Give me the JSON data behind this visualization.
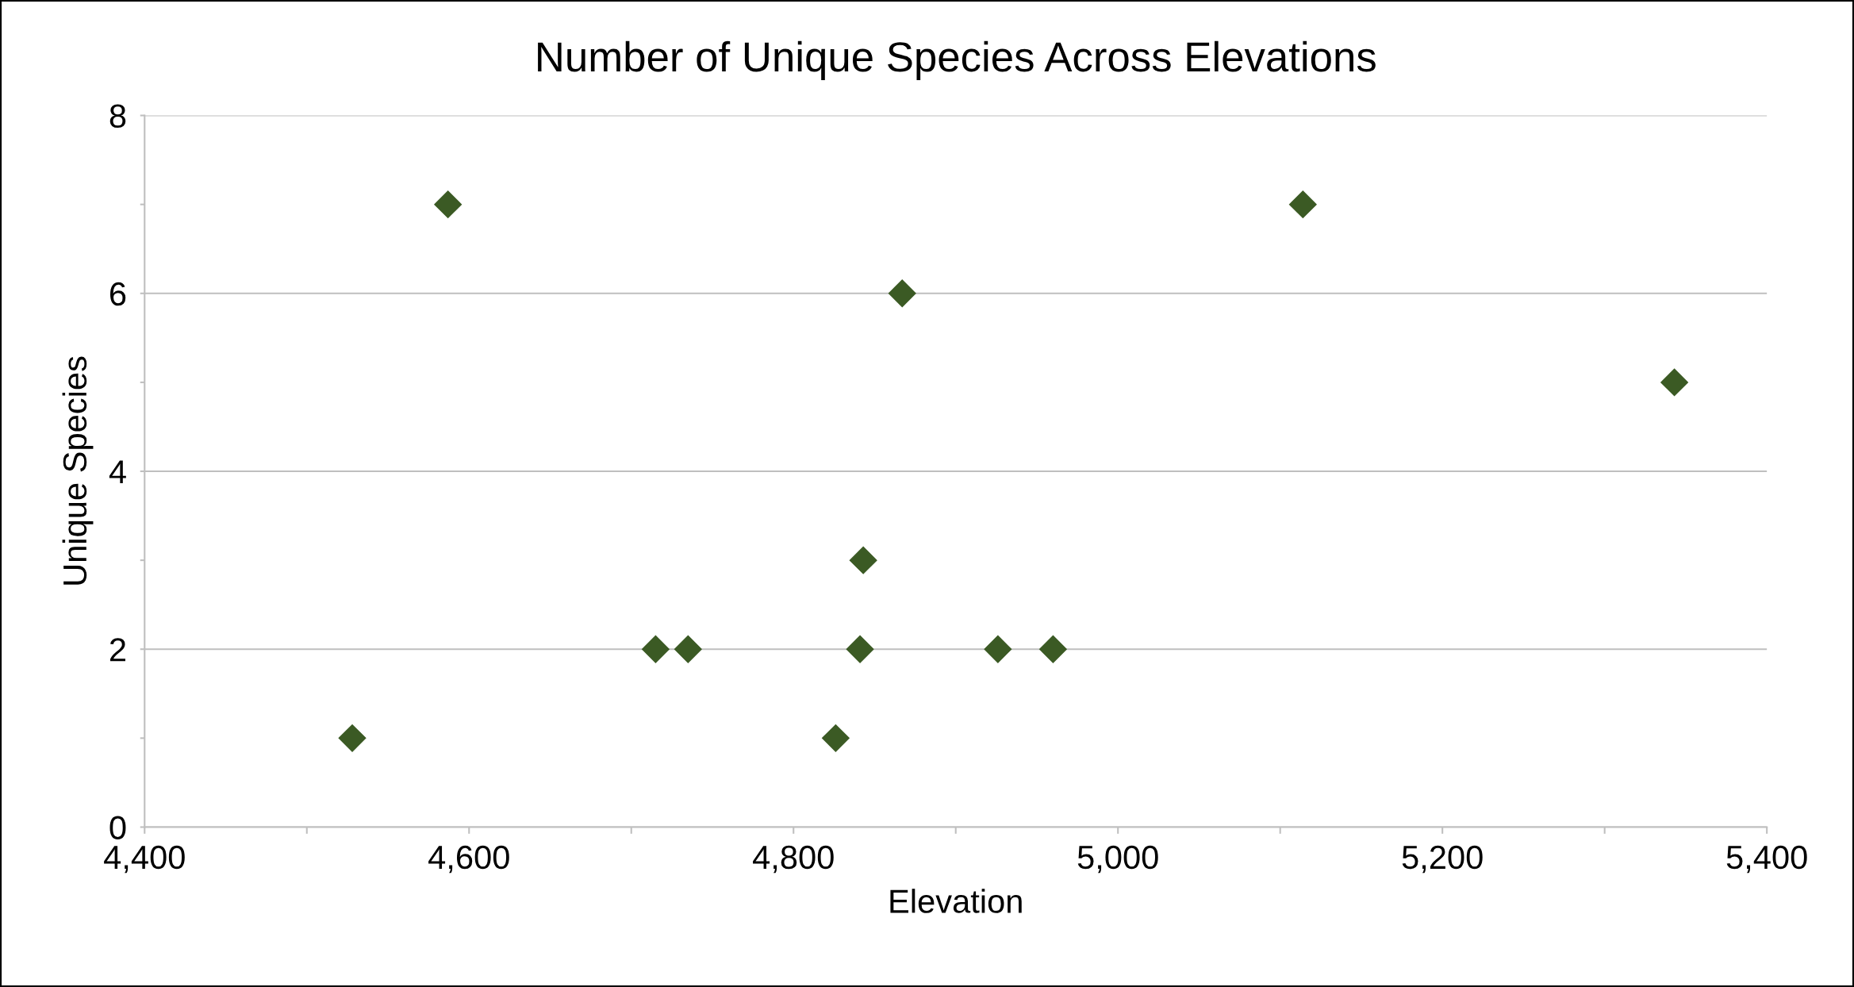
{
  "chart_data": {
    "type": "scatter",
    "title": "Number of Unique Species Across Elevations",
    "xlabel": "Elevation",
    "ylabel": "Unique Species",
    "x": [
      4528,
      4587,
      4715,
      4735,
      4826,
      4841,
      4843,
      4867,
      4926,
      4960,
      5114,
      5343
    ],
    "series": [
      {
        "color": "#3b5a24",
        "values": [
          1,
          7,
          2,
          2,
          1,
          2,
          3,
          6,
          2,
          2,
          7,
          5
        ]
      }
    ],
    "xlim": [
      4400,
      5400
    ],
    "xticks": [
      {
        "value": 4400,
        "label": "4,400"
      },
      {
        "value": 4500,
        "label": null
      },
      {
        "value": 4600,
        "label": "4,600"
      },
      {
        "value": 4700,
        "label": null
      },
      {
        "value": 4800,
        "label": "4,800"
      },
      {
        "value": 4900,
        "label": null
      },
      {
        "value": 5000,
        "label": "5,000"
      },
      {
        "value": 5100,
        "label": null
      },
      {
        "value": 5200,
        "label": "5,200"
      },
      {
        "value": 5300,
        "label": null
      },
      {
        "value": 5400,
        "label": "5,400"
      }
    ],
    "ylim": [
      0,
      8
    ],
    "yticks": [
      0,
      {
        "value": 1,
        "label": null
      },
      2,
      {
        "value": 3,
        "label": null
      },
      4,
      {
        "value": 5,
        "label": null
      },
      6,
      {
        "value": 7,
        "label": null
      },
      8
    ],
    "grid": "y",
    "marker": "diamond"
  }
}
